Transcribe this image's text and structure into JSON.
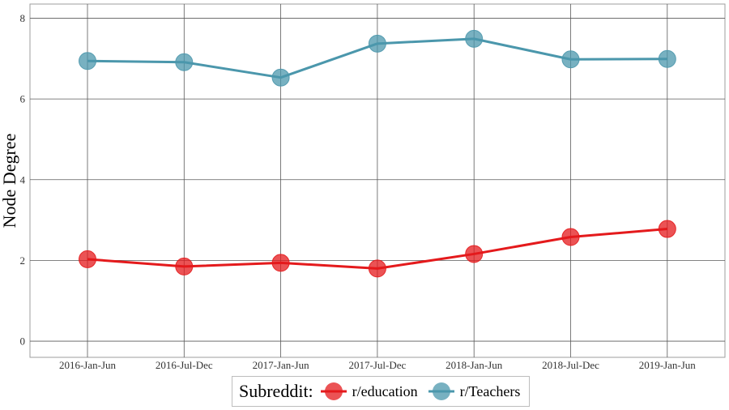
{
  "chart_data": {
    "type": "line",
    "title": "",
    "xlabel": "",
    "ylabel": "Node Degree",
    "categories": [
      "2016-Jan-Jun",
      "2016-Jul-Dec",
      "2017-Jan-Jun",
      "2017-Jul-Dec",
      "2018-Jan-Jun",
      "2018-Jul-Dec",
      "2019-Jan-Jun"
    ],
    "ylim": [
      -0.4,
      8.35
    ],
    "yticks": [
      0,
      2,
      4,
      6,
      8
    ],
    "ytick_labels": [
      "0",
      "2",
      "4",
      "6",
      "8"
    ],
    "grid": true,
    "legend": {
      "title": "Subreddit:",
      "placement": "bottom"
    },
    "series": [
      {
        "name": "r/education",
        "color": "#e41a1c",
        "values": [
          2.03,
          1.85,
          1.94,
          1.8,
          2.16,
          2.58,
          2.78
        ]
      },
      {
        "name": "r/Teachers",
        "color": "#4b97ac",
        "values": [
          6.94,
          6.91,
          6.53,
          7.37,
          7.49,
          6.98,
          6.99
        ]
      }
    ]
  }
}
